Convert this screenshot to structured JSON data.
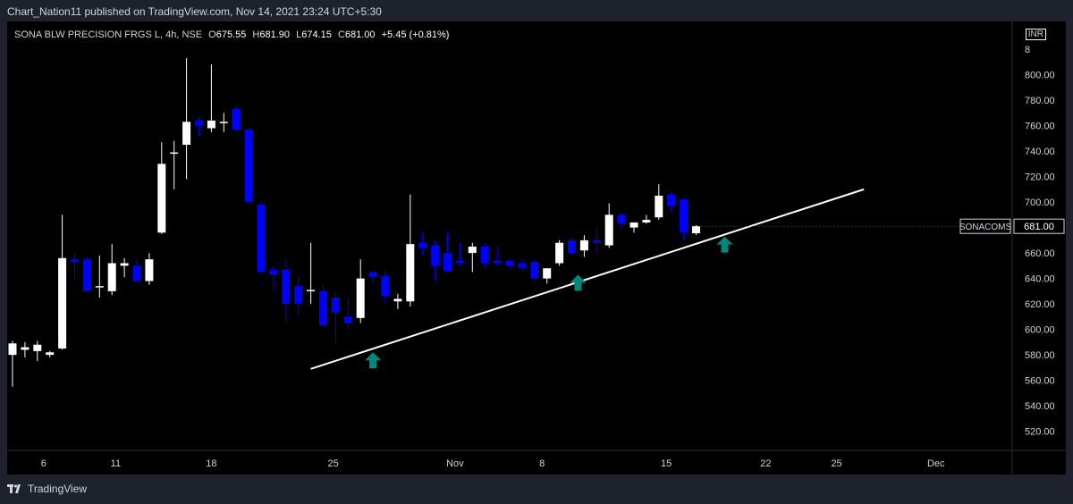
{
  "header": {
    "text": "Chart_Nation11 published on TradingView.com, Nov 14, 2021 23:24 UTC+5:30"
  },
  "legend": {
    "symbol": "SONA BLW PRECISION FRGS L, 4h, NSE",
    "open_key": "O",
    "open": "675.55",
    "high_key": "H",
    "high": "681.90",
    "low_key": "L",
    "low": "674.15",
    "close_key": "C",
    "close": "681.00",
    "change": "+5.45 (+0.81%)"
  },
  "currency_badge": "INR",
  "price_tag": {
    "ticker": "SONACOMS",
    "value": "681.00"
  },
  "footer": {
    "brand": "TradingView"
  },
  "colors": {
    "up": "#ffffff",
    "down": "#0000ff",
    "arrow": "#00897b",
    "trendline": "#ffffff",
    "background": "#000000"
  },
  "chart_data": {
    "type": "candlestick",
    "y_ticks": [
      "520.00",
      "540.00",
      "560.00",
      "580.00",
      "600.00",
      "620.00",
      "640.00",
      "660.00",
      "680.00",
      "700.00",
      "720.00",
      "740.00",
      "760.00",
      "780.00",
      "800.00"
    ],
    "y_top_tick_partial": "8",
    "ylim": [
      505,
      825
    ],
    "x_ticks": [
      {
        "label": "6",
        "index": 2.5
      },
      {
        "label": "11",
        "index": 8.3
      },
      {
        "label": "18",
        "index": 16.0
      },
      {
        "label": "25",
        "index": 25.8
      },
      {
        "label": "Nov",
        "index": 35.6
      },
      {
        "label": "8",
        "index": 42.6
      },
      {
        "label": "15",
        "index": 52.6
      },
      {
        "label": "22",
        "index": 60.6
      },
      {
        "label": "25",
        "index": 66.3
      },
      {
        "label": "Dec",
        "index": 74.3
      }
    ],
    "candles": [
      {
        "o": 580,
        "h": 591,
        "l": 555,
        "c": 589
      },
      {
        "o": 584,
        "h": 590,
        "l": 578,
        "c": 586
      },
      {
        "o": 583,
        "h": 591,
        "l": 575,
        "c": 588
      },
      {
        "o": 580,
        "h": 583,
        "l": 578,
        "c": 582
      },
      {
        "o": 585,
        "h": 690,
        "l": 584,
        "c": 656
      },
      {
        "o": 655,
        "h": 659,
        "l": 640,
        "c": 653
      },
      {
        "o": 655,
        "h": 657,
        "l": 630,
        "c": 630
      },
      {
        "o": 634,
        "h": 658,
        "l": 625,
        "c": 634
      },
      {
        "o": 630,
        "h": 667,
        "l": 627,
        "c": 652
      },
      {
        "o": 650,
        "h": 656,
        "l": 641,
        "c": 652
      },
      {
        "o": 650,
        "h": 655,
        "l": 638,
        "c": 638
      },
      {
        "o": 638,
        "h": 660,
        "l": 635,
        "c": 655
      },
      {
        "o": 676,
        "h": 747,
        "l": 675,
        "c": 730
      },
      {
        "o": 738,
        "h": 748,
        "l": 710,
        "c": 739
      },
      {
        "o": 745,
        "h": 813,
        "l": 718,
        "c": 763
      },
      {
        "o": 764,
        "h": 766,
        "l": 752,
        "c": 760
      },
      {
        "o": 758,
        "h": 808,
        "l": 755,
        "c": 764
      },
      {
        "o": 762,
        "h": 770,
        "l": 755,
        "c": 763
      },
      {
        "o": 773,
        "h": 775,
        "l": 756,
        "c": 757
      },
      {
        "o": 757,
        "h": 758,
        "l": 700,
        "c": 700
      },
      {
        "o": 698,
        "h": 700,
        "l": 645,
        "c": 645
      },
      {
        "o": 647,
        "h": 650,
        "l": 630,
        "c": 643
      },
      {
        "o": 647,
        "h": 655,
        "l": 605,
        "c": 620
      },
      {
        "o": 634,
        "h": 643,
        "l": 612,
        "c": 620
      },
      {
        "o": 630,
        "h": 668,
        "l": 620,
        "c": 631
      },
      {
        "o": 630,
        "h": 635,
        "l": 602,
        "c": 603
      },
      {
        "o": 625,
        "h": 629,
        "l": 589,
        "c": 613
      },
      {
        "o": 610,
        "h": 625,
        "l": 600,
        "c": 605
      },
      {
        "o": 609,
        "h": 655,
        "l": 605,
        "c": 640
      },
      {
        "o": 645,
        "h": 646,
        "l": 636,
        "c": 641
      },
      {
        "o": 642,
        "h": 646,
        "l": 620,
        "c": 626
      },
      {
        "o": 622,
        "h": 628,
        "l": 616,
        "c": 624
      },
      {
        "o": 622,
        "h": 706,
        "l": 618,
        "c": 667
      },
      {
        "o": 668,
        "h": 676,
        "l": 658,
        "c": 664
      },
      {
        "o": 666,
        "h": 670,
        "l": 638,
        "c": 650
      },
      {
        "o": 660,
        "h": 676,
        "l": 645,
        "c": 646
      },
      {
        "o": 654,
        "h": 668,
        "l": 650,
        "c": 652
      },
      {
        "o": 660,
        "h": 668,
        "l": 645,
        "c": 665
      },
      {
        "o": 665,
        "h": 668,
        "l": 648,
        "c": 652
      },
      {
        "o": 654,
        "h": 665,
        "l": 650,
        "c": 652
      },
      {
        "o": 654,
        "h": 655,
        "l": 647,
        "c": 650
      },
      {
        "o": 652,
        "h": 655,
        "l": 646,
        "c": 648
      },
      {
        "o": 653,
        "h": 655,
        "l": 638,
        "c": 640
      },
      {
        "o": 640,
        "h": 648,
        "l": 636,
        "c": 648
      },
      {
        "o": 652,
        "h": 670,
        "l": 650,
        "c": 668
      },
      {
        "o": 670,
        "h": 672,
        "l": 660,
        "c": 660
      },
      {
        "o": 662,
        "h": 674,
        "l": 657,
        "c": 670
      },
      {
        "o": 670,
        "h": 680,
        "l": 660,
        "c": 668
      },
      {
        "o": 666,
        "h": 699,
        "l": 664,
        "c": 690
      },
      {
        "o": 690,
        "h": 692,
        "l": 680,
        "c": 683
      },
      {
        "o": 680,
        "h": 682,
        "l": 676,
        "c": 684
      },
      {
        "o": 684,
        "h": 690,
        "l": 683,
        "c": 686
      },
      {
        "o": 688,
        "h": 714,
        "l": 686,
        "c": 705
      },
      {
        "o": 706,
        "h": 708,
        "l": 692,
        "c": 697
      },
      {
        "o": 702,
        "h": 703,
        "l": 670,
        "c": 676
      },
      {
        "o": 675.55,
        "h": 681.9,
        "l": 674.15,
        "c": 681
      }
    ],
    "trendline": {
      "from": {
        "index": 24.0,
        "price": 569
      },
      "to": {
        "index": 68.5,
        "price": 710
      }
    },
    "arrows": [
      {
        "index": 29.0,
        "price": 575
      },
      {
        "index": 45.5,
        "price": 636
      },
      {
        "index": 57.3,
        "price": 666
      }
    ]
  }
}
